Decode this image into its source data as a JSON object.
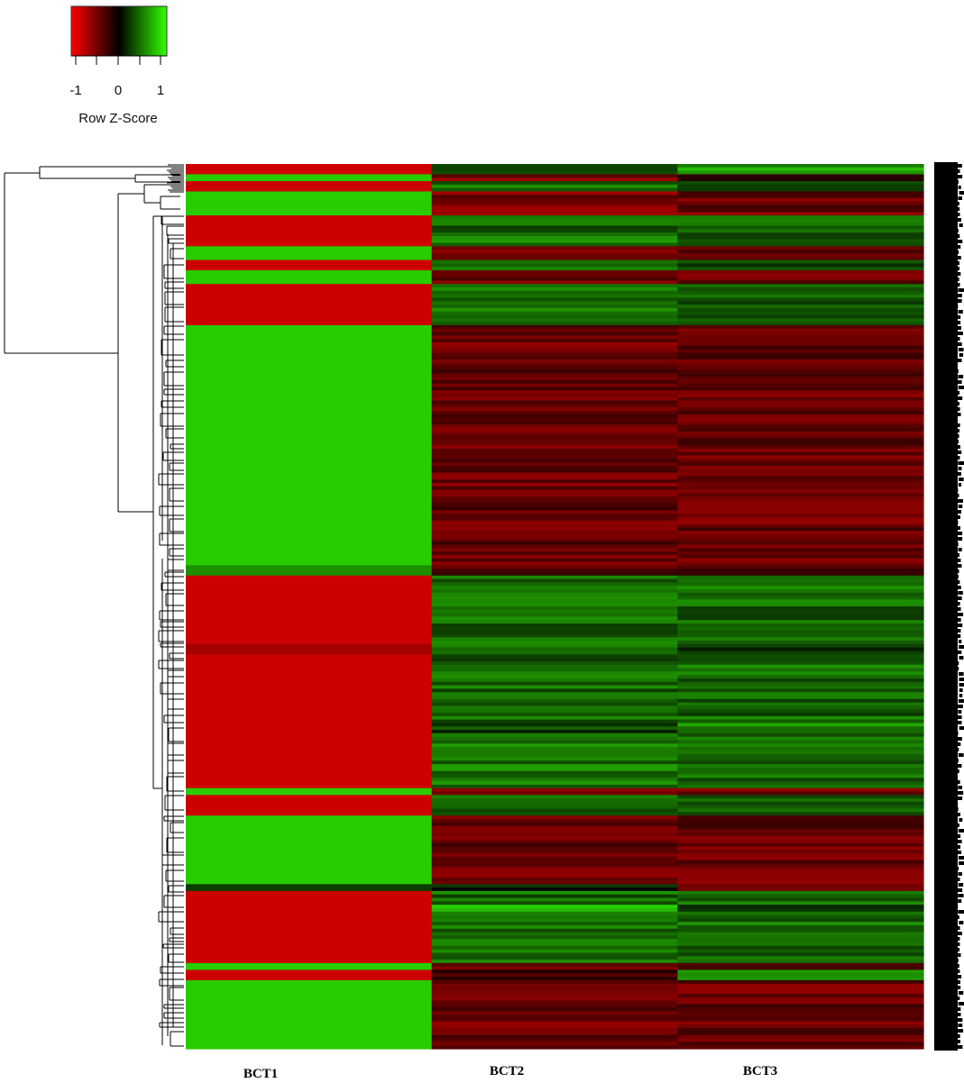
{
  "chart_data": {
    "type": "heatmap",
    "columns": [
      "BCT1",
      "BCT2",
      "BCT3"
    ],
    "color_key": {
      "title": "Row Z-Score",
      "ticks": [
        "-1",
        "0",
        "1"
      ],
      "range": [
        -1.25,
        1.25
      ],
      "colors": {
        "low": "#ff0000",
        "mid": "#000000",
        "high": "#33ff00"
      }
    },
    "row_blocks": [
      {
        "rows": 3,
        "values": [
          -1.0,
          0.3,
          0.7
        ]
      },
      {
        "rows": 2,
        "values": [
          1.0,
          -0.6,
          -0.4
        ]
      },
      {
        "rows": 3,
        "values": [
          -1.0,
          0.5,
          0.5
        ]
      },
      {
        "rows": 1,
        "values": [
          1.0,
          -0.6,
          -0.4
        ]
      },
      {
        "rows": 6,
        "values": [
          1.0,
          -0.6,
          -0.5
        ]
      },
      {
        "rows": 5,
        "values": [
          -1.0,
          0.5,
          0.5
        ]
      },
      {
        "rows": 4,
        "values": [
          -1.0,
          0.6,
          0.4
        ]
      },
      {
        "rows": 4,
        "values": [
          1.0,
          -0.6,
          -0.5
        ]
      },
      {
        "rows": 3,
        "values": [
          -1.0,
          0.6,
          0.4
        ]
      },
      {
        "rows": 4,
        "values": [
          1.0,
          -0.5,
          -0.5
        ]
      },
      {
        "rows": 6,
        "values": [
          -1.0,
          0.5,
          0.5
        ]
      },
      {
        "rows": 4,
        "values": [
          -1.0,
          0.6,
          0.4
        ]
      },
      {
        "rows": 2,
        "values": [
          -1.0,
          0.4,
          0.6
        ]
      },
      {
        "rows": 70,
        "values": [
          1.0,
          -0.5,
          -0.5
        ]
      },
      {
        "rows": 3,
        "values": [
          0.7,
          -0.4,
          -0.3
        ]
      },
      {
        "rows": 20,
        "values": [
          -1.0,
          0.5,
          0.5
        ]
      },
      {
        "rows": 3,
        "values": [
          -0.8,
          0.5,
          0.3
        ]
      },
      {
        "rows": 20,
        "values": [
          -1.0,
          0.5,
          0.5
        ]
      },
      {
        "rows": 3,
        "values": [
          -1.0,
          0.3,
          0.7
        ]
      },
      {
        "rows": 16,
        "values": [
          -1.0,
          0.55,
          0.45
        ]
      },
      {
        "rows": 2,
        "values": [
          1.0,
          -0.5,
          -0.5
        ]
      },
      {
        "rows": 6,
        "values": [
          -1.0,
          0.5,
          0.5
        ]
      },
      {
        "rows": 20,
        "values": [
          1.0,
          -0.5,
          -0.5
        ]
      },
      {
        "rows": 2,
        "values": [
          0.3,
          0.1,
          -0.4
        ]
      },
      {
        "rows": 4,
        "values": [
          -1.0,
          0.5,
          0.5
        ]
      },
      {
        "rows": 2,
        "values": [
          -1.0,
          0.8,
          0.2
        ]
      },
      {
        "rows": 8,
        "values": [
          -1.0,
          0.5,
          0.5
        ]
      },
      {
        "rows": 7,
        "values": [
          -1.0,
          0.5,
          0.5
        ]
      },
      {
        "rows": 2,
        "values": [
          1.0,
          -0.5,
          -0.5
        ]
      },
      {
        "rows": 3,
        "values": [
          -1.0,
          -0.2,
          0.8
        ]
      },
      {
        "rows": 20,
        "values": [
          1.0,
          -0.5,
          -0.5
        ]
      }
    ]
  }
}
